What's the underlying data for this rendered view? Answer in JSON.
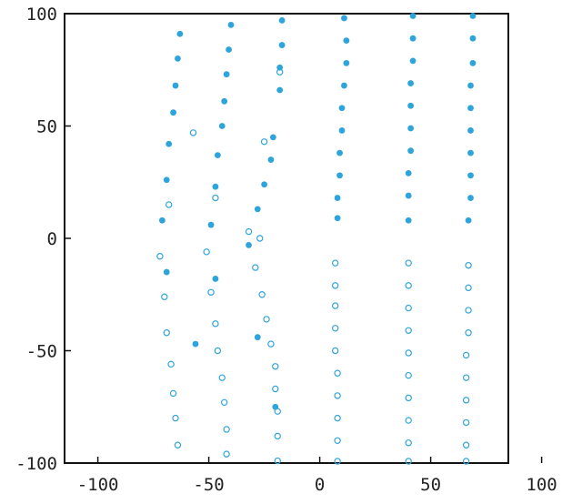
{
  "chart_data": {
    "type": "scatter",
    "title": "",
    "xlabel": "",
    "ylabel": "",
    "xlim": [
      -115,
      85
    ],
    "ylim": [
      -100,
      100
    ],
    "x_ticks": [
      -100,
      -50,
      0,
      50,
      100
    ],
    "x_tick_labels": [
      "-100",
      "-50",
      "0",
      "50",
      "100"
    ],
    "y_ticks": [
      -100,
      -50,
      0,
      50,
      100
    ],
    "y_tick_labels": [
      "-100",
      "-50",
      "0",
      "50",
      "100"
    ],
    "grid": false,
    "legend": "none",
    "colors": {
      "marker": "#2ea4dc",
      "axis": "#111111"
    },
    "series": [
      {
        "marker": "filled",
        "points": [
          [
            -63,
            91
          ],
          [
            -64,
            80
          ],
          [
            -65,
            68
          ],
          [
            -66,
            56
          ],
          [
            -68,
            42
          ],
          [
            -69,
            26
          ],
          [
            -71,
            8
          ],
          [
            -69,
            -15
          ],
          [
            -56,
            -47
          ],
          [
            -40,
            95
          ],
          [
            -41,
            84
          ],
          [
            -42,
            73
          ],
          [
            -43,
            61
          ],
          [
            -44,
            50
          ],
          [
            -46,
            37
          ],
          [
            -47,
            23
          ],
          [
            -49,
            6
          ],
          [
            -47,
            -18
          ],
          [
            -17,
            97
          ],
          [
            -17,
            86
          ],
          [
            -18,
            76
          ],
          [
            -18,
            66
          ],
          [
            -21,
            45
          ],
          [
            -22,
            35
          ],
          [
            -25,
            24
          ],
          [
            -28,
            13
          ],
          [
            -32,
            -3
          ],
          [
            -28,
            -44
          ],
          [
            -20,
            -75
          ],
          [
            11,
            98
          ],
          [
            12,
            88
          ],
          [
            12,
            78
          ],
          [
            11,
            68
          ],
          [
            10,
            58
          ],
          [
            10,
            48
          ],
          [
            9,
            38
          ],
          [
            9,
            28
          ],
          [
            8,
            18
          ],
          [
            8,
            9
          ],
          [
            42,
            99
          ],
          [
            42,
            89
          ],
          [
            42,
            79
          ],
          [
            41,
            69
          ],
          [
            41,
            59
          ],
          [
            41,
            49
          ],
          [
            41,
            39
          ],
          [
            40,
            29
          ],
          [
            40,
            19
          ],
          [
            40,
            8
          ],
          [
            69,
            99
          ],
          [
            69,
            89
          ],
          [
            69,
            78
          ],
          [
            68,
            68
          ],
          [
            68,
            58
          ],
          [
            68,
            48
          ],
          [
            68,
            38
          ],
          [
            68,
            28
          ],
          [
            68,
            18
          ],
          [
            67,
            8
          ]
        ]
      },
      {
        "marker": "hollow",
        "points": [
          [
            -68,
            15
          ],
          [
            -72,
            -8
          ],
          [
            -70,
            -26
          ],
          [
            -69,
            -42
          ],
          [
            -67,
            -56
          ],
          [
            -66,
            -69
          ],
          [
            -65,
            -80
          ],
          [
            -64,
            -92
          ],
          [
            -57,
            47
          ],
          [
            -47,
            18
          ],
          [
            -51,
            -6
          ],
          [
            -49,
            -24
          ],
          [
            -47,
            -38
          ],
          [
            -46,
            -50
          ],
          [
            -44,
            -62
          ],
          [
            -43,
            -73
          ],
          [
            -42,
            -85
          ],
          [
            -42,
            -96
          ],
          [
            -18,
            74
          ],
          [
            -25,
            43
          ],
          [
            -32,
            3
          ],
          [
            -27,
            0
          ],
          [
            -29,
            -13
          ],
          [
            -26,
            -25
          ],
          [
            -24,
            -36
          ],
          [
            -22,
            -47
          ],
          [
            -20,
            -57
          ],
          [
            -20,
            -67
          ],
          [
            -19,
            -77
          ],
          [
            -19,
            -88
          ],
          [
            -19,
            -99
          ],
          [
            7,
            -11
          ],
          [
            7,
            -21
          ],
          [
            7,
            -30
          ],
          [
            7,
            -40
          ],
          [
            7,
            -50
          ],
          [
            8,
            -60
          ],
          [
            8,
            -70
          ],
          [
            8,
            -80
          ],
          [
            8,
            -90
          ],
          [
            8,
            -100
          ],
          [
            40,
            -11
          ],
          [
            40,
            -21
          ],
          [
            40,
            -31
          ],
          [
            40,
            -41
          ],
          [
            40,
            -51
          ],
          [
            40,
            -61
          ],
          [
            40,
            -71
          ],
          [
            40,
            -81
          ],
          [
            40,
            -91
          ],
          [
            40,
            -101
          ],
          [
            67,
            -12
          ],
          [
            67,
            -22
          ],
          [
            67,
            -32
          ],
          [
            67,
            -42
          ],
          [
            66,
            -52
          ],
          [
            66,
            -62
          ],
          [
            66,
            -72
          ],
          [
            66,
            -82
          ],
          [
            66,
            -92
          ],
          [
            66,
            -102
          ]
        ]
      }
    ]
  }
}
